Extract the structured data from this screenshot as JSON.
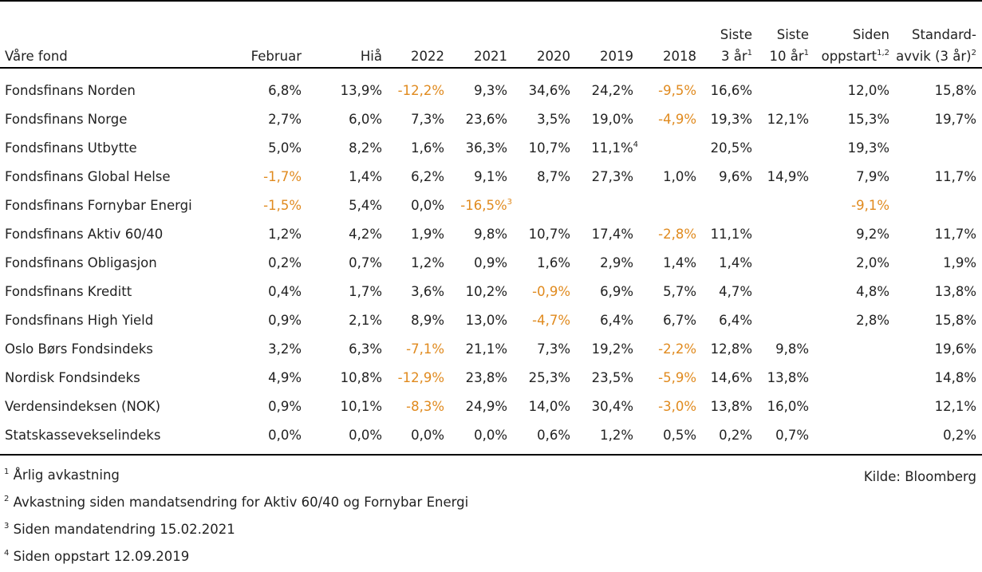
{
  "table": {
    "headers": [
      {
        "key": "name",
        "text": "Våre fond"
      },
      {
        "key": "feb",
        "text": "Februar"
      },
      {
        "key": "hia",
        "text": "Hiå"
      },
      {
        "key": "y2022",
        "text": "2022"
      },
      {
        "key": "y2021",
        "text": "2021"
      },
      {
        "key": "y2020",
        "text": "2020"
      },
      {
        "key": "y2019",
        "text": "2019"
      },
      {
        "key": "y2018",
        "text": "2018"
      },
      {
        "key": "s3",
        "line1": "Siste",
        "line2": "3 år",
        "sup": "1"
      },
      {
        "key": "s10",
        "line1": "Siste",
        "line2": "10 år",
        "sup": "1"
      },
      {
        "key": "since",
        "line1": "Siden",
        "line2": "oppstart",
        "sup": "1,2"
      },
      {
        "key": "std",
        "line1": "Standard-",
        "line2": "avvik (3 år)",
        "sup": "2"
      }
    ],
    "rows": [
      {
        "name": "Fondsfinans Norden",
        "values": [
          "6,8%",
          "13,9%",
          "-12,2%",
          "9,3%",
          "34,6%",
          "24,2%",
          "-9,5%",
          "16,6%",
          "",
          "12,0%",
          "15,8%"
        ]
      },
      {
        "name": "Fondsfinans Norge",
        "values": [
          "2,7%",
          "6,0%",
          "7,3%",
          "23,6%",
          "3,5%",
          "19,0%",
          "-4,9%",
          "19,3%",
          "12,1%",
          "15,3%",
          "19,7%"
        ]
      },
      {
        "name": "Fondsfinans Utbytte",
        "values": [
          "5,0%",
          "8,2%",
          "1,6%",
          "36,3%",
          "10,7%",
          "11,1%",
          "",
          "20,5%",
          "",
          "19,3%",
          ""
        ],
        "sups": {
          "5": "4"
        }
      },
      {
        "name": "Fondsfinans Global Helse",
        "values": [
          "-1,7%",
          "1,4%",
          "6,2%",
          "9,1%",
          "8,7%",
          "27,3%",
          "1,0%",
          "9,6%",
          "14,9%",
          "7,9%",
          "11,7%"
        ]
      },
      {
        "name": "Fondsfinans Fornybar Energi",
        "values": [
          "-1,5%",
          "5,4%",
          "0,0%",
          "-16,5%",
          "",
          "",
          "",
          "",
          "",
          "-9,1%",
          ""
        ],
        "sups": {
          "3": "3"
        }
      },
      {
        "name": "Fondsfinans Aktiv 60/40",
        "values": [
          "1,2%",
          "4,2%",
          "1,9%",
          "9,8%",
          "10,7%",
          "17,4%",
          "-2,8%",
          "11,1%",
          "",
          "9,2%",
          "11,7%"
        ]
      },
      {
        "name": "Fondsfinans Obligasjon",
        "values": [
          "0,2%",
          "0,7%",
          "1,2%",
          "0,9%",
          "1,6%",
          "2,9%",
          "1,4%",
          "1,4%",
          "",
          "2,0%",
          "1,9%"
        ]
      },
      {
        "name": "Fondsfinans Kreditt",
        "values": [
          "0,4%",
          "1,7%",
          "3,6%",
          "10,2%",
          "-0,9%",
          "6,9%",
          "5,7%",
          "4,7%",
          "",
          "4,8%",
          "13,8%"
        ]
      },
      {
        "name": "Fondsfinans High Yield",
        "values": [
          "0,9%",
          "2,1%",
          "8,9%",
          "13,0%",
          "-4,7%",
          "6,4%",
          "6,7%",
          "6,4%",
          "",
          "2,8%",
          "15,8%"
        ]
      },
      {
        "name": "Oslo Børs Fondsindeks",
        "values": [
          "3,2%",
          "6,3%",
          "-7,1%",
          "21,1%",
          "7,3%",
          "19,2%",
          "-2,2%",
          "12,8%",
          "9,8%",
          "",
          "19,6%"
        ]
      },
      {
        "name": "Nordisk Fondsindeks",
        "values": [
          "4,9%",
          "10,8%",
          "-12,9%",
          "23,8%",
          "25,3%",
          "23,5%",
          "-5,9%",
          "14,6%",
          "13,8%",
          "",
          "14,8%"
        ]
      },
      {
        "name": "Verdensindeksen (NOK)",
        "values": [
          "0,9%",
          "10,1%",
          "-8,3%",
          "24,9%",
          "14,0%",
          "30,4%",
          "-3,0%",
          "13,8%",
          "16,0%",
          "",
          "12,1%"
        ]
      },
      {
        "name": "Statskasseveksel­indeks",
        "values": [
          "0,0%",
          "0,0%",
          "0,0%",
          "0,0%",
          "0,6%",
          "1,2%",
          "0,5%",
          "0,2%",
          "0,7%",
          "",
          "0,2%"
        ]
      }
    ]
  },
  "footnotes": [
    {
      "num": "1",
      "text": "Årlig avkastning"
    },
    {
      "num": "2",
      "text": "Avkastning siden mandatsendring for Aktiv 60/40 og Fornybar Energi"
    },
    {
      "num": "3",
      "text": "Siden mandatendring 15.02.2021"
    },
    {
      "num": "4",
      "text": "Siden oppstart 12.09.2019"
    }
  ],
  "source": "Kilde: Bloomberg",
  "colors": {
    "negative": "#e08a1e",
    "text": "#222222",
    "rule": "#000000"
  }
}
